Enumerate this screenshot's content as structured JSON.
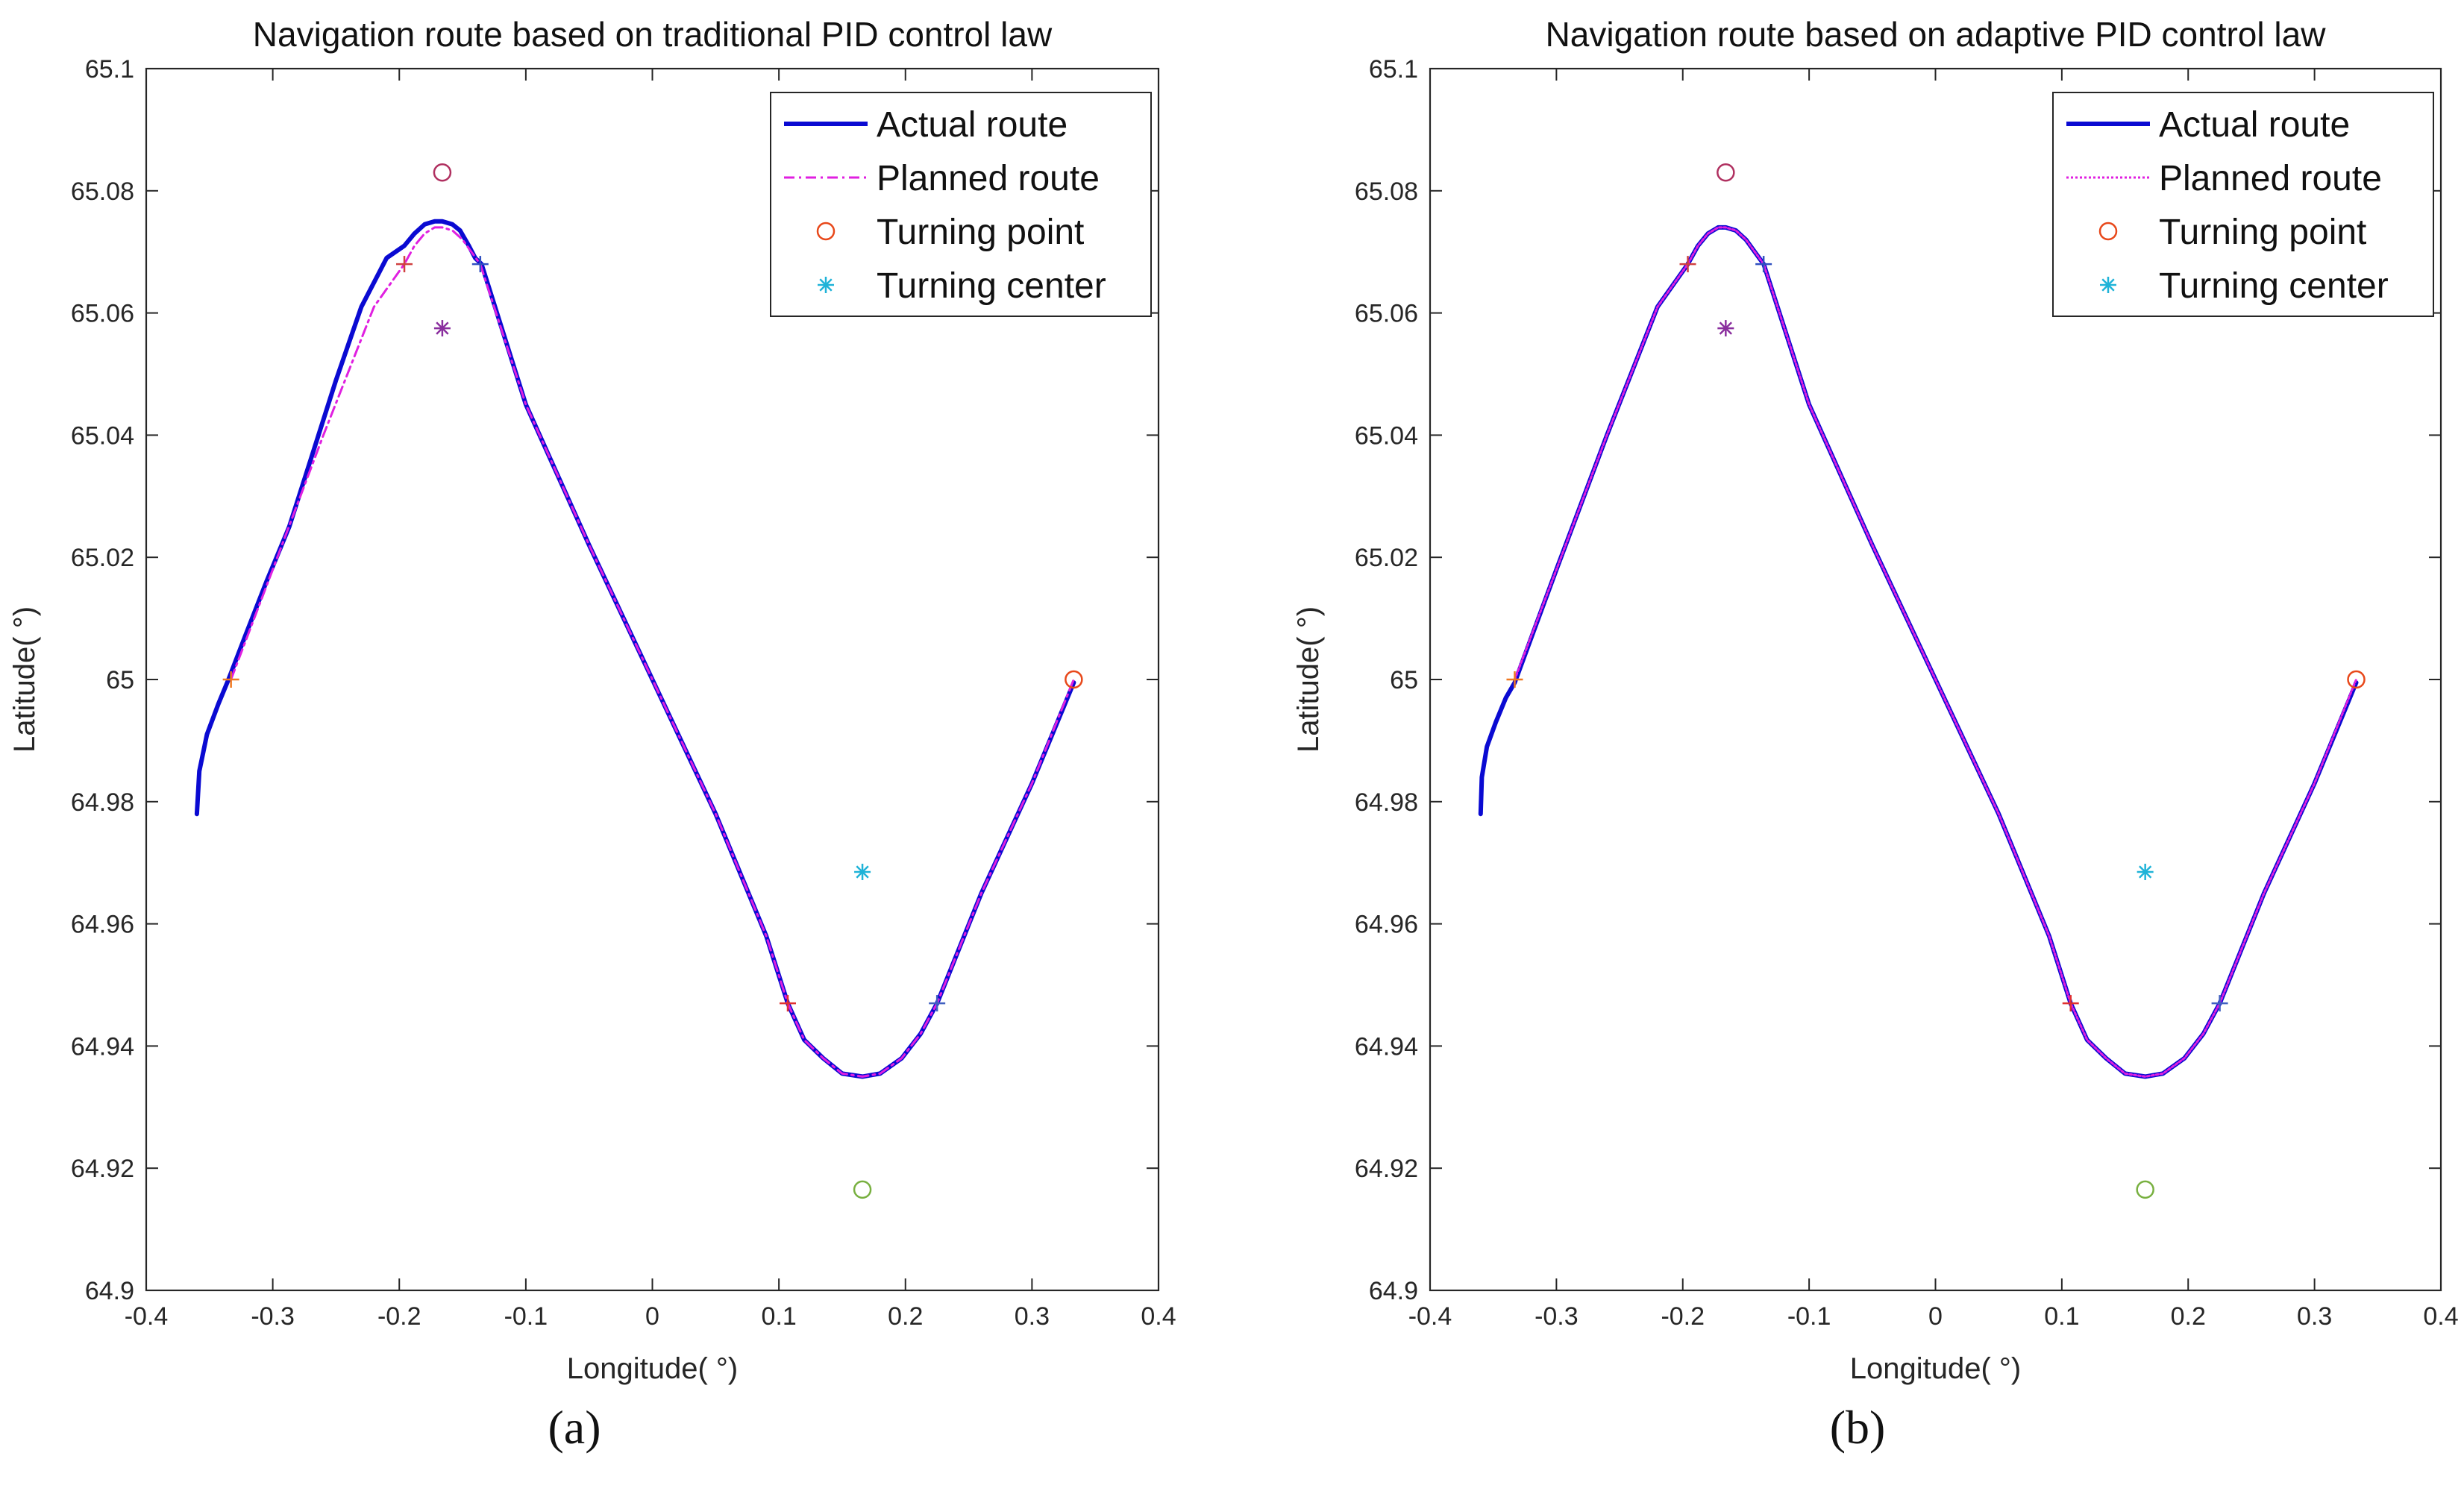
{
  "colors": {
    "actual": "#0a0ad2",
    "planned": "#e020e0",
    "turning_point": "#e8481a",
    "turning_center": "#1fb3d8",
    "axis": "#262626"
  },
  "chart_data": [
    {
      "type": "line",
      "panel": "(a)",
      "sub_label": "(a)",
      "title": "Navigation route based on traditional PID control law",
      "xlabel": "Longitude( °)",
      "ylabel": "Latitude( °)",
      "xlim": [
        -0.4,
        0.4
      ],
      "ylim": [
        64.9,
        65.1
      ],
      "xticks": [
        -0.4,
        -0.3,
        -0.2,
        -0.1,
        0,
        0.1,
        0.2,
        0.3,
        0.4
      ],
      "yticks": [
        64.9,
        64.92,
        64.94,
        64.96,
        64.98,
        65,
        65.02,
        65.04,
        65.06,
        65.08,
        65.1
      ],
      "xtick_labels": [
        "-0.4",
        "-0.3",
        "-0.2",
        "-0.1",
        "0",
        "0.1",
        "0.2",
        "0.3",
        "0.4"
      ],
      "ytick_labels": [
        "64.9",
        "64.92",
        "64.94",
        "64.96",
        "64.98",
        "65",
        "65.02",
        "65.04",
        "65.06",
        "65.08",
        "65.1"
      ],
      "legend": [
        "Actual route",
        "Planned route",
        "Turning point",
        "Turning center"
      ],
      "legend_position": "top-right",
      "series": [
        {
          "name": "Actual route",
          "x": [
            -0.36,
            -0.358,
            -0.352,
            -0.343,
            -0.335,
            -0.322,
            -0.305,
            -0.293,
            -0.287,
            -0.27,
            -0.25,
            -0.23,
            -0.21,
            -0.196,
            -0.188,
            -0.18,
            -0.172,
            -0.166,
            -0.158,
            -0.152,
            -0.145,
            -0.14,
            -0.135,
            -0.1,
            -0.05,
            0,
            0.05,
            0.09,
            0.107,
            0.12,
            0.135,
            0.15,
            0.166,
            0.18,
            0.197,
            0.212,
            0.225,
            0.26,
            0.3,
            0.333
          ],
          "y": [
            64.978,
            64.985,
            64.991,
            64.996,
            65.0,
            65.007,
            65.016,
            65.022,
            65.025,
            65.036,
            65.049,
            65.061,
            65.069,
            65.071,
            65.073,
            65.0745,
            65.075,
            65.075,
            65.0745,
            65.0735,
            65.071,
            65.069,
            65.068,
            65.045,
            65.022,
            65.0,
            64.978,
            64.958,
            64.947,
            64.941,
            64.938,
            64.9355,
            64.935,
            64.9355,
            64.938,
            64.942,
            64.947,
            64.965,
            64.983,
            64.9995
          ]
        },
        {
          "name": "Planned route",
          "x": [
            -0.333,
            -0.3,
            -0.26,
            -0.22,
            -0.196,
            -0.188,
            -0.18,
            -0.172,
            -0.166,
            -0.158,
            -0.15,
            -0.143,
            -0.136,
            -0.1,
            -0.05,
            0,
            0.05,
            0.09,
            0.107,
            0.12,
            0.135,
            0.15,
            0.166,
            0.18,
            0.197,
            0.212,
            0.225,
            0.26,
            0.3,
            0.333
          ],
          "y": [
            65.0,
            65.018,
            65.04,
            65.061,
            65.068,
            65.071,
            65.073,
            65.074,
            65.074,
            65.0735,
            65.072,
            65.07,
            65.068,
            65.045,
            65.022,
            65.0,
            64.978,
            64.958,
            64.947,
            64.941,
            64.938,
            64.9355,
            64.935,
            64.9355,
            64.938,
            64.942,
            64.947,
            64.965,
            64.983,
            65.0
          ]
        }
      ],
      "turning_points": [
        {
          "x": -0.166,
          "y": 65.083,
          "color": "#b03060"
        },
        {
          "x": 0.333,
          "y": 65.0,
          "color": "#e8481a"
        },
        {
          "x": 0.166,
          "y": 64.9165,
          "color": "#78b040"
        }
      ],
      "turning_centers": [
        {
          "x": -0.166,
          "y": 65.0575,
          "color": "#8a2e9e"
        },
        {
          "x": 0.166,
          "y": 64.9685,
          "color": "#1fb3d8"
        }
      ],
      "tangent_points": [
        {
          "x": -0.333,
          "y": 65.0,
          "color": "#f07820"
        },
        {
          "x": -0.196,
          "y": 65.068,
          "color": "#d04040"
        },
        {
          "x": -0.136,
          "y": 65.068,
          "color": "#3050c0"
        },
        {
          "x": 0.107,
          "y": 64.947,
          "color": "#e03030"
        },
        {
          "x": 0.225,
          "y": 64.947,
          "color": "#4060c0"
        }
      ]
    },
    {
      "type": "line",
      "panel": "(b)",
      "sub_label": "(b)",
      "title": "Navigation route based on adaptive PID control law",
      "xlabel": "Longitude( °)",
      "ylabel": "Latitude( °)",
      "xlim": [
        -0.4,
        0.4
      ],
      "ylim": [
        64.9,
        65.1
      ],
      "xticks": [
        -0.4,
        -0.3,
        -0.2,
        -0.1,
        0,
        0.1,
        0.2,
        0.3,
        0.4
      ],
      "yticks": [
        64.9,
        64.92,
        64.94,
        64.96,
        64.98,
        65,
        65.02,
        65.04,
        65.06,
        65.08,
        65.1
      ],
      "xtick_labels": [
        "-0.4",
        "-0.3",
        "-0.2",
        "-0.1",
        "0",
        "0.1",
        "0.2",
        "0.3",
        "0.4"
      ],
      "ytick_labels": [
        "64.9",
        "64.92",
        "64.94",
        "64.96",
        "64.98",
        "65",
        "65.02",
        "65.04",
        "65.06",
        "65.08",
        "65.1"
      ],
      "legend": [
        "Actual route",
        "Planned route",
        "Turning point",
        "Turning center"
      ],
      "legend_position": "top-right",
      "series": [
        {
          "name": "Actual route",
          "x": [
            -0.36,
            -0.359,
            -0.355,
            -0.348,
            -0.34,
            -0.333,
            -0.3,
            -0.26,
            -0.22,
            -0.196,
            -0.188,
            -0.18,
            -0.172,
            -0.166,
            -0.158,
            -0.15,
            -0.143,
            -0.136,
            -0.1,
            -0.05,
            0,
            0.05,
            0.09,
            0.107,
            0.12,
            0.135,
            0.15,
            0.166,
            0.18,
            0.197,
            0.212,
            0.225,
            0.26,
            0.3,
            0.333
          ],
          "y": [
            64.978,
            64.984,
            64.989,
            64.993,
            64.997,
            64.9995,
            65.018,
            65.04,
            65.061,
            65.068,
            65.071,
            65.073,
            65.074,
            65.074,
            65.0735,
            65.072,
            65.07,
            65.068,
            65.045,
            65.022,
            65.0,
            64.978,
            64.958,
            64.947,
            64.941,
            64.938,
            64.9355,
            64.935,
            64.9355,
            64.938,
            64.942,
            64.947,
            64.965,
            64.983,
            64.9995
          ]
        },
        {
          "name": "Planned route",
          "x": [
            -0.333,
            -0.3,
            -0.26,
            -0.22,
            -0.196,
            -0.188,
            -0.18,
            -0.172,
            -0.166,
            -0.158,
            -0.15,
            -0.143,
            -0.136,
            -0.1,
            -0.05,
            0,
            0.05,
            0.09,
            0.107,
            0.12,
            0.135,
            0.15,
            0.166,
            0.18,
            0.197,
            0.212,
            0.225,
            0.26,
            0.3,
            0.333
          ],
          "y": [
            65.0,
            65.018,
            65.04,
            65.061,
            65.068,
            65.071,
            65.073,
            65.074,
            65.074,
            65.0735,
            65.072,
            65.07,
            65.068,
            65.045,
            65.022,
            65.0,
            64.978,
            64.958,
            64.947,
            64.941,
            64.938,
            64.9355,
            64.935,
            64.9355,
            64.938,
            64.942,
            64.947,
            64.965,
            64.983,
            65.0
          ]
        }
      ],
      "turning_points": [
        {
          "x": -0.166,
          "y": 65.083,
          "color": "#b03060"
        },
        {
          "x": 0.333,
          "y": 65.0,
          "color": "#e8481a"
        },
        {
          "x": 0.166,
          "y": 64.9165,
          "color": "#78b040"
        }
      ],
      "turning_centers": [
        {
          "x": -0.166,
          "y": 65.0575,
          "color": "#8a2e9e"
        },
        {
          "x": 0.166,
          "y": 64.9685,
          "color": "#1fb3d8"
        }
      ],
      "tangent_points": [
        {
          "x": -0.333,
          "y": 65.0,
          "color": "#f07820"
        },
        {
          "x": -0.196,
          "y": 65.068,
          "color": "#d04040"
        },
        {
          "x": -0.136,
          "y": 65.068,
          "color": "#3050c0"
        },
        {
          "x": 0.107,
          "y": 64.947,
          "color": "#e03030"
        },
        {
          "x": 0.225,
          "y": 64.947,
          "color": "#4060c0"
        }
      ]
    }
  ]
}
